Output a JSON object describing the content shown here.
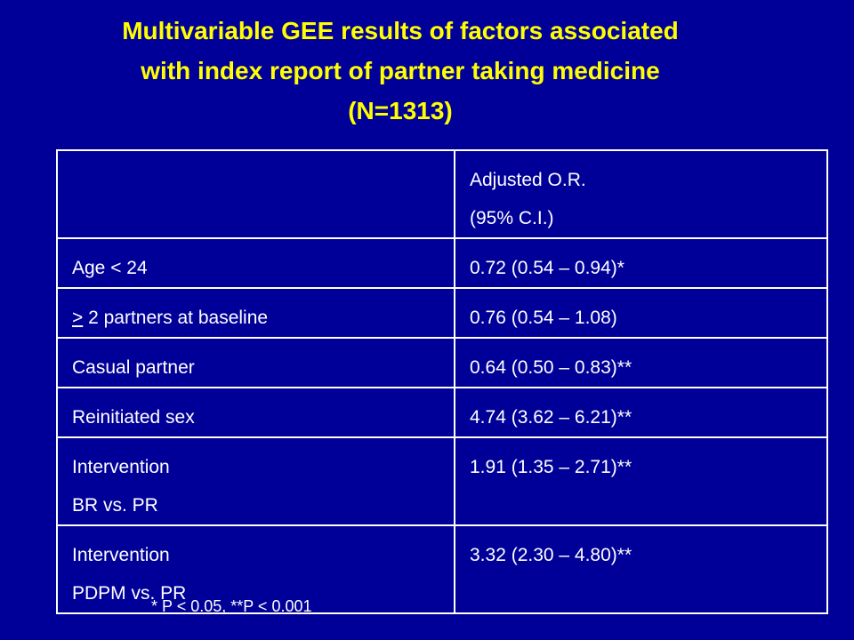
{
  "title": [
    "Multivariable GEE results of factors associated",
    "with index report of partner taking medicine",
    "(N=1313)"
  ],
  "table": {
    "header": [
      "Adjusted O.R.",
      "(95% C.I.)"
    ],
    "rows": [
      {
        "label": [
          "Age < 24"
        ],
        "value": "0.72 (0.54 – 0.94)*"
      },
      {
        "label": [
          "> 2 partners at baseline"
        ],
        "value": "0.76 (0.54 – 1.08)"
      },
      {
        "label": [
          "Casual partner"
        ],
        "value": "0.64 (0.50 – 0.83)**"
      },
      {
        "label": [
          "Reinitiated sex"
        ],
        "value": "4.74 (3.62 – 6.21)**"
      },
      {
        "label": [
          "Intervention",
          "BR vs. PR"
        ],
        "value": "1.91 (1.35 – 2.71)**"
      },
      {
        "label": [
          "Intervention",
          "PDPM vs. PR"
        ],
        "value": "3.32 (2.30 – 4.80)**"
      }
    ]
  },
  "footnote": "* P < 0.05, **P < 0.001"
}
